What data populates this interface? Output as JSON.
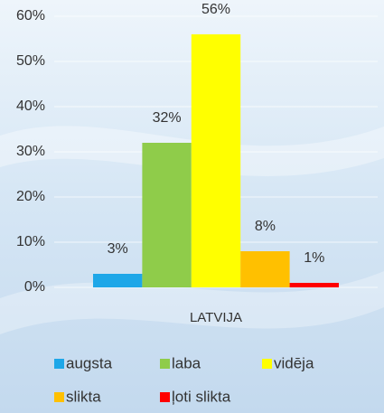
{
  "chart_data": {
    "type": "bar",
    "categories": [
      "LATVIJA"
    ],
    "series": [
      {
        "name": "augsta",
        "color": "#1ea7e8",
        "values": [
          3
        ],
        "value_labels": [
          "3%"
        ]
      },
      {
        "name": "laba",
        "color": "#8fcc4a",
        "values": [
          32
        ],
        "value_labels": [
          "32%"
        ]
      },
      {
        "name": "vidēja",
        "color": "#ffff00",
        "values": [
          56
        ],
        "value_labels": [
          "56%"
        ]
      },
      {
        "name": "slikta",
        "color": "#ffc000",
        "values": [
          8
        ],
        "value_labels": [
          "8%"
        ]
      },
      {
        "name": "ļoti slikta",
        "color": "#ff0000",
        "values": [
          1
        ],
        "value_labels": [
          "1%"
        ]
      }
    ],
    "ylim": [
      0,
      60
    ],
    "yticks": [
      {
        "value": 0,
        "label": "0%"
      },
      {
        "value": 10,
        "label": "10%"
      },
      {
        "value": 20,
        "label": "20%"
      },
      {
        "value": 30,
        "label": "30%"
      },
      {
        "value": 40,
        "label": "40%"
      },
      {
        "value": 50,
        "label": "50%"
      },
      {
        "value": 60,
        "label": "60%"
      }
    ],
    "grid": true
  }
}
